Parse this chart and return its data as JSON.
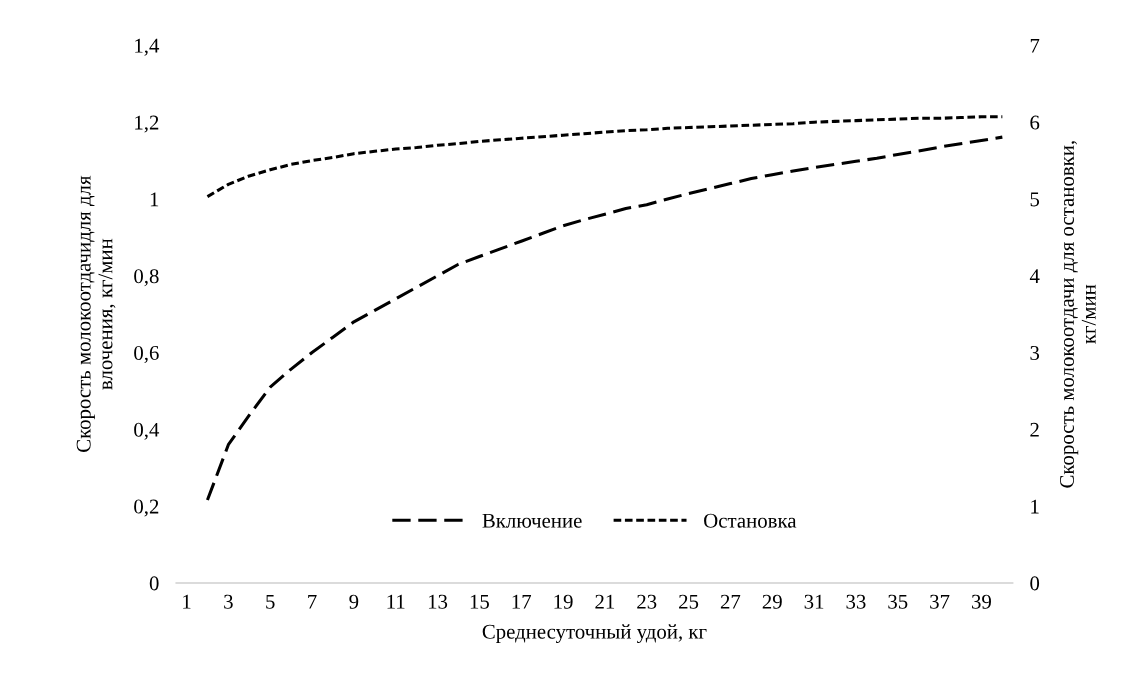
{
  "chart_data": {
    "type": "line",
    "xlabel": "Среднесуточный удой, кг",
    "ylabel": "Скорость молокоотдачидля для\nвлочения, кг/мин",
    "y2label": "Скорость молокоотдачи для остановки,\nкг/мин",
    "x": [
      2,
      3,
      4,
      5,
      6,
      7,
      8,
      9,
      10,
      11,
      12,
      13,
      14,
      15,
      16,
      17,
      18,
      19,
      20,
      21,
      22,
      23,
      24,
      25,
      26,
      27,
      28,
      29,
      30,
      31,
      32,
      33,
      34,
      35,
      36,
      37,
      38,
      39,
      40
    ],
    "xlim": [
      0.5,
      40.5
    ],
    "xticks": [
      1,
      3,
      5,
      7,
      9,
      11,
      13,
      15,
      17,
      19,
      21,
      23,
      25,
      27,
      29,
      31,
      33,
      35,
      37,
      39
    ],
    "ylim": [
      0,
      1.4
    ],
    "yticks": [
      0,
      {
        "value": 0.2,
        "label": "0,2"
      },
      {
        "value": 0.4,
        "label": "0,4"
      },
      {
        "value": 0.6,
        "label": "0,6"
      },
      {
        "value": 0.8,
        "label": "0,8"
      },
      1,
      {
        "value": 1.2,
        "label": "1,2"
      },
      {
        "value": 1.4,
        "label": "1,4"
      }
    ],
    "y2lim": [
      0,
      7
    ],
    "y2ticks": [
      0,
      1,
      2,
      3,
      4,
      5,
      6,
      7
    ],
    "series": [
      {
        "name": "Включение",
        "color": "#000000",
        "line_style": "dashed",
        "values": [
          0.216,
          0.36,
          0.437,
          0.51,
          0.557,
          0.6,
          0.64,
          0.68,
          0.71,
          0.74,
          0.77,
          0.8,
          0.83,
          0.85,
          0.87,
          0.89,
          0.91,
          0.93,
          0.946,
          0.96,
          0.975,
          0.985,
          1.0,
          1.014,
          1.027,
          1.04,
          1.053,
          1.063,
          1.073,
          1.082,
          1.09,
          1.098,
          1.106,
          1.116,
          1.125,
          1.135,
          1.144,
          1.152,
          1.161
        ]
      },
      {
        "name": "Остановка",
        "color": "#000000",
        "line_style": "dotted",
        "axis": "y2",
        "values": [
          5.03,
          5.19,
          5.3,
          5.38,
          5.45,
          5.5,
          5.54,
          5.59,
          5.62,
          5.65,
          5.67,
          5.7,
          5.72,
          5.75,
          5.77,
          5.79,
          5.81,
          5.83,
          5.85,
          5.87,
          5.89,
          5.9,
          5.92,
          5.93,
          5.94,
          5.95,
          5.96,
          5.97,
          5.98,
          6.0,
          6.01,
          6.02,
          6.03,
          6.04,
          6.05,
          6.05,
          6.06,
          6.07,
          6.07
        ]
      }
    ],
    "grid": false,
    "legend": "bottom"
  }
}
